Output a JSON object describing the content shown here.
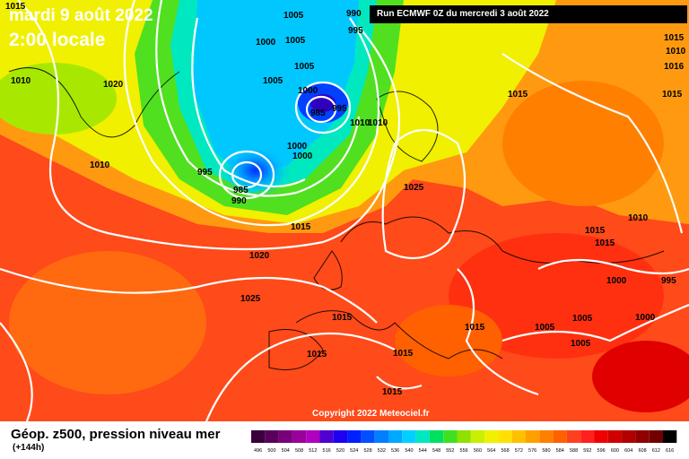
{
  "overlay": {
    "date": "mardi 9 août 2022",
    "time": "2:00 locale"
  },
  "run_label": "Run ECMWF 0Z du mercredi 3 août 2022",
  "copyright": "Copyright 2022 Meteociel.fr",
  "footer": {
    "title": "Géop. z500, pression niveau mer",
    "subtitle": "(+144h)"
  },
  "pressure_labels": [
    "1015",
    "1005",
    "990",
    "995",
    "1000",
    "1005",
    "1020",
    "1010",
    "1005",
    "985",
    "995",
    "1010",
    "1010",
    "1005",
    "1000",
    "1000",
    "1000",
    "1015",
    "1015",
    "995",
    "985",
    "990",
    "1015",
    "1010",
    "1025",
    "1015",
    "1016",
    "1010",
    "1015",
    "1015",
    "1020",
    "1000",
    "995",
    "1025",
    "1005",
    "1010",
    "1005",
    "1000",
    "1015",
    "1015",
    "1005",
    "1015",
    "1015",
    "1015"
  ],
  "legend": {
    "values": [
      "496",
      "500",
      "504",
      "508",
      "512",
      "516",
      "520",
      "524",
      "528",
      "532",
      "536",
      "540",
      "544",
      "548",
      "552",
      "556",
      "560",
      "564",
      "568",
      "572",
      "576",
      "580",
      "584",
      "588",
      "592",
      "596",
      "600",
      "604",
      "608",
      "612",
      "616"
    ],
    "colors": [
      "#3b003b",
      "#5a005a",
      "#7a007a",
      "#9a009a",
      "#b000c0",
      "#5000d0",
      "#2000f0",
      "#0020ff",
      "#0050ff",
      "#0080ff",
      "#00a8ff",
      "#00d0ff",
      "#00e8c0",
      "#00e060",
      "#40e020",
      "#90e000",
      "#c8f000",
      "#f0f000",
      "#ffe000",
      "#ffc000",
      "#ffa000",
      "#ff8000",
      "#ff6000",
      "#ff4020",
      "#ff2020",
      "#f00000",
      "#d00000",
      "#b00000",
      "#900000",
      "#700000",
      "#000000"
    ]
  }
}
